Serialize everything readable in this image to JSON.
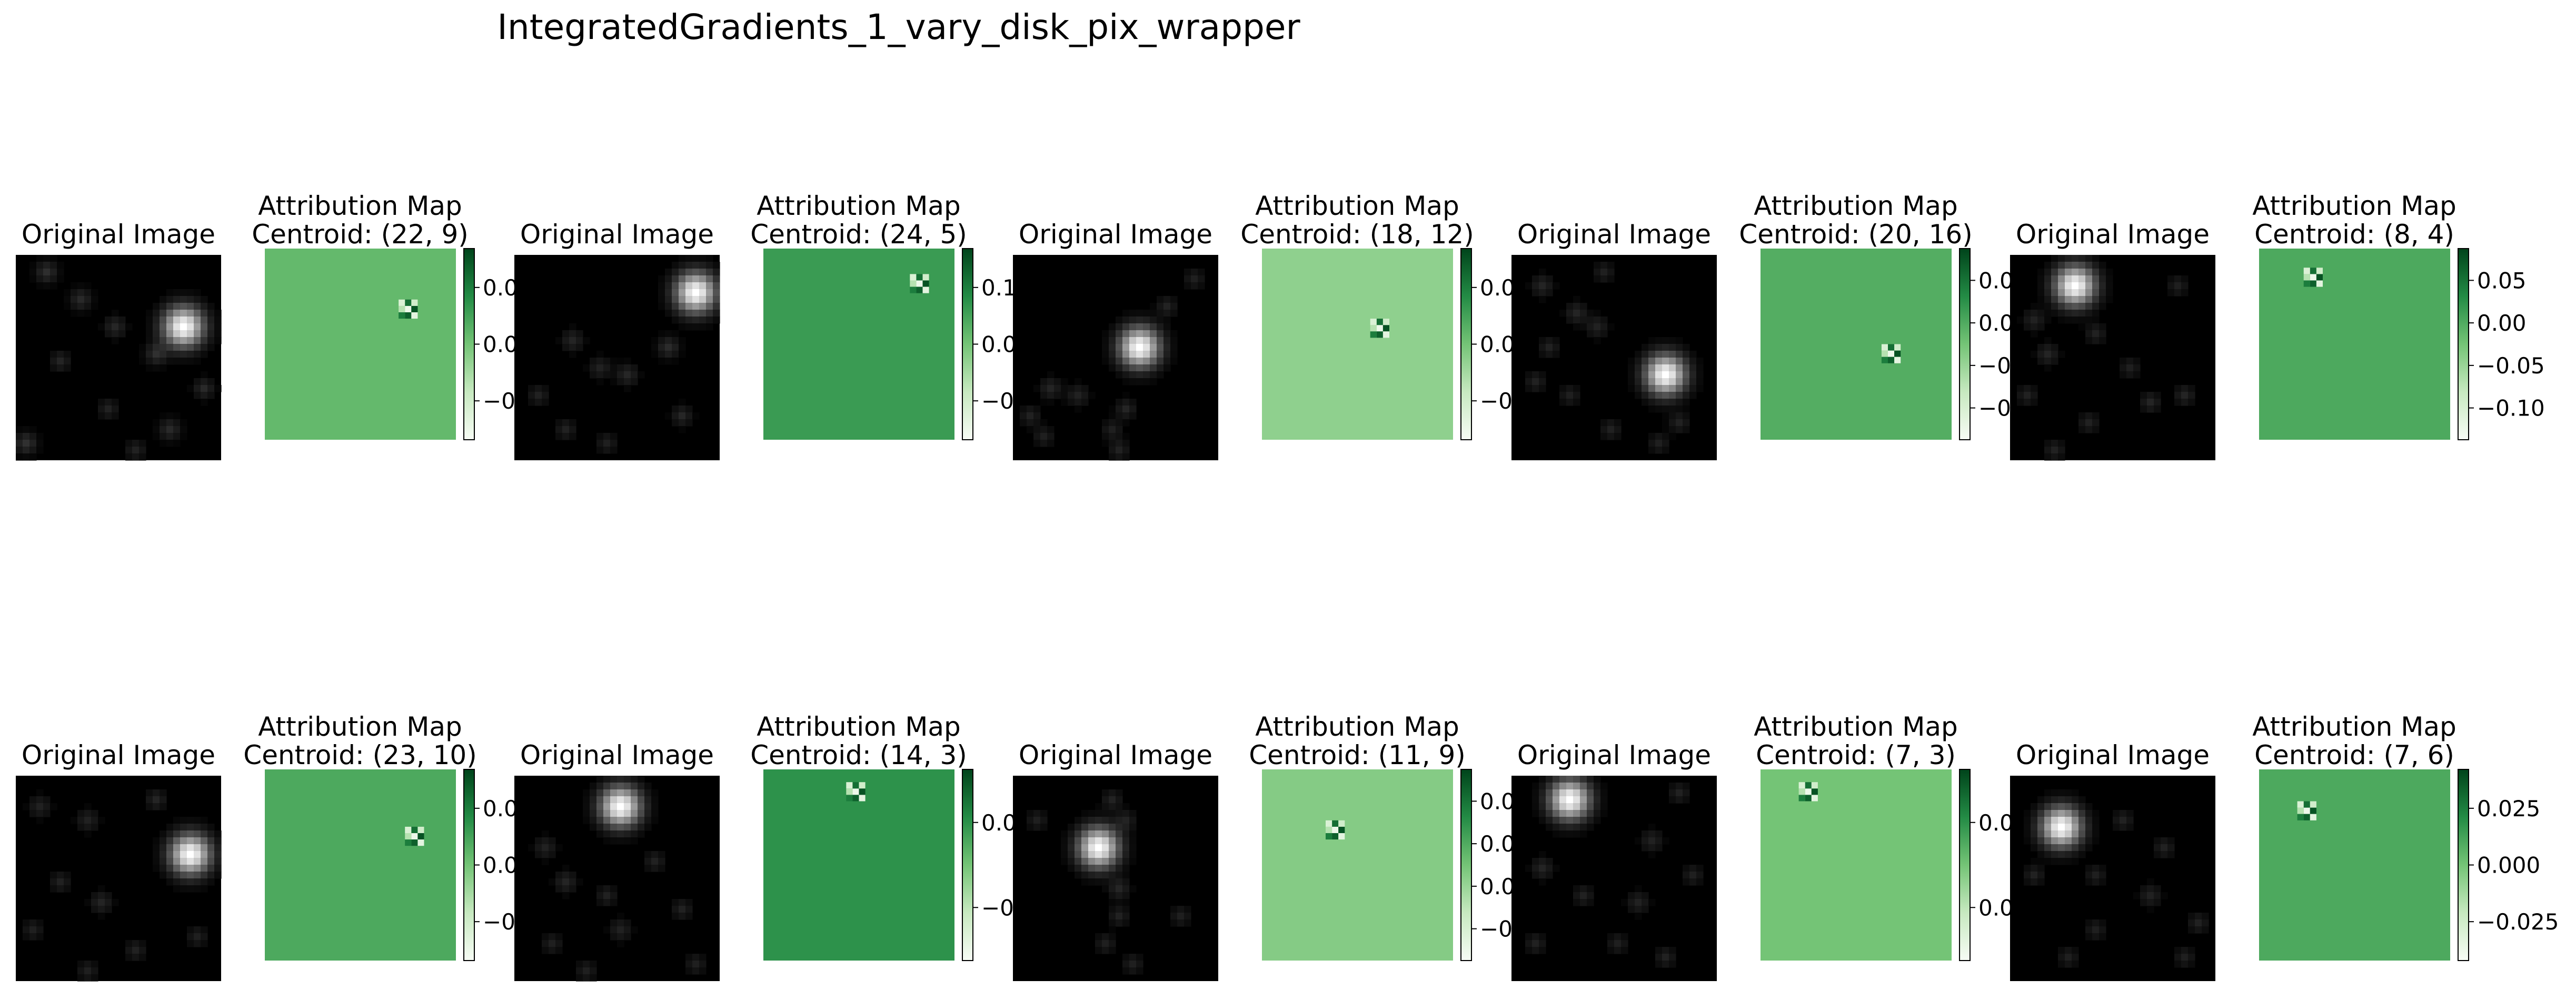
{
  "figure": {
    "title": "IntegratedGradients_1_vary_disk_pix_wrapper"
  },
  "chart_data": {
    "type": "heatmap",
    "title": "IntegratedGradients_1_vary_disk_pix_wrapper",
    "grid": false,
    "colormap_original": "gray",
    "colormap_attribution": "Greens",
    "panels": [
      {
        "original_title": "Original Image",
        "attr_title": "Attribution Map",
        "centroid_text": "Centroid: (22, 9)",
        "centroid": [
          22,
          9
        ],
        "bg_level": 0.55,
        "blobs": [
          [
            24,
            10,
            1.0,
            2.0
          ],
          [
            4,
            2,
            0.18,
            1.1
          ],
          [
            9,
            6,
            0.16,
            1.1
          ],
          [
            14,
            10,
            0.15,
            1.1
          ],
          [
            6,
            15,
            0.14,
            1.0
          ],
          [
            20,
            14,
            0.17,
            1.1
          ],
          [
            27,
            19,
            0.16,
            1.0
          ],
          [
            13,
            22,
            0.13,
            1.0
          ],
          [
            22,
            25,
            0.16,
            1.1
          ],
          [
            1,
            27,
            0.19,
            1.1
          ],
          [
            17,
            28,
            0.13,
            1.0
          ]
        ],
        "colorbar_ticks": [
          "0.0",
          "0.0",
          "−0"
        ]
      },
      {
        "original_title": "Original Image",
        "attr_title": "Attribution Map",
        "centroid_text": "Centroid: (24, 5)",
        "centroid": [
          24,
          5
        ],
        "bg_level": 0.68,
        "blobs": [
          [
            26,
            5,
            1.0,
            2.0
          ],
          [
            8,
            12,
            0.14,
            1.1
          ],
          [
            12,
            16,
            0.13,
            1.1
          ],
          [
            16,
            17,
            0.15,
            1.1
          ],
          [
            3,
            20,
            0.13,
            1.0
          ],
          [
            22,
            13,
            0.17,
            1.1
          ],
          [
            24,
            23,
            0.15,
            1.0
          ],
          [
            13,
            27,
            0.12,
            1.0
          ],
          [
            7,
            25,
            0.13,
            1.0
          ]
        ],
        "colorbar_ticks": [
          "0.1",
          "0.0",
          "−0"
        ]
      },
      {
        "original_title": "Original Image",
        "attr_title": "Attribution Map",
        "centroid_text": "Centroid: (18, 12)",
        "centroid": [
          18,
          12
        ],
        "bg_level": 0.42,
        "blobs": [
          [
            18,
            13,
            1.0,
            2.0
          ],
          [
            5,
            19,
            0.14,
            1.1
          ],
          [
            9,
            20,
            0.13,
            1.1
          ],
          [
            2,
            23,
            0.13,
            1.0
          ],
          [
            4,
            26,
            0.12,
            1.0
          ],
          [
            16,
            22,
            0.14,
            1.0
          ],
          [
            14,
            25,
            0.12,
            1.0
          ],
          [
            22,
            7,
            0.13,
            1.0
          ],
          [
            26,
            3,
            0.12,
            1.0
          ],
          [
            15,
            28,
            0.13,
            1.0
          ]
        ],
        "colorbar_ticks": [
          "0.0",
          "0.0",
          "−0"
        ]
      },
      {
        "original_title": "Original Image",
        "attr_title": "Attribution Map",
        "centroid_text": "Centroid: (20, 16)",
        "centroid": [
          20,
          16
        ],
        "bg_level": 0.6,
        "blobs": [
          [
            22,
            17,
            1.0,
            2.0
          ],
          [
            4,
            4,
            0.14,
            1.1
          ],
          [
            9,
            8,
            0.14,
            1.1
          ],
          [
            12,
            10,
            0.13,
            1.1
          ],
          [
            5,
            13,
            0.13,
            1.0
          ],
          [
            3,
            18,
            0.13,
            1.0
          ],
          [
            8,
            20,
            0.12,
            1.0
          ],
          [
            14,
            25,
            0.13,
            1.0
          ],
          [
            24,
            24,
            0.13,
            1.0
          ],
          [
            13,
            2,
            0.12,
            1.0
          ],
          [
            21,
            27,
            0.12,
            1.0
          ]
        ],
        "colorbar_ticks": [
          "0.0",
          "0.0",
          "−0",
          "−0"
        ]
      },
      {
        "original_title": "Original Image",
        "attr_title": "Attribution Map",
        "centroid_text": "Centroid: (8, 4)",
        "centroid": [
          8,
          4
        ],
        "bg_level": 0.62,
        "blobs": [
          [
            9,
            4,
            1.0,
            2.0
          ],
          [
            3,
            9,
            0.13,
            1.1
          ],
          [
            5,
            14,
            0.14,
            1.1
          ],
          [
            2,
            20,
            0.13,
            1.0
          ],
          [
            12,
            11,
            0.13,
            1.0
          ],
          [
            17,
            16,
            0.12,
            1.0
          ],
          [
            20,
            21,
            0.14,
            1.0
          ],
          [
            11,
            24,
            0.13,
            1.0
          ],
          [
            25,
            20,
            0.14,
            1.0
          ],
          [
            6,
            28,
            0.13,
            1.0
          ],
          [
            24,
            4,
            0.12,
            1.0
          ]
        ],
        "colorbar_ticks": [
          "0.05",
          "0.00",
          "−0.05",
          "−0.10"
        ]
      },
      {
        "original_title": "Original Image",
        "attr_title": "Attribution Map",
        "centroid_text": "Centroid: (23, 10)",
        "centroid": [
          23,
          10
        ],
        "bg_level": 0.62,
        "blobs": [
          [
            25,
            11,
            1.0,
            2.0
          ],
          [
            3,
            4,
            0.13,
            1.1
          ],
          [
            10,
            6,
            0.13,
            1.1
          ],
          [
            20,
            3,
            0.14,
            1.0
          ],
          [
            6,
            15,
            0.13,
            1.0
          ],
          [
            12,
            18,
            0.14,
            1.1
          ],
          [
            2,
            22,
            0.12,
            1.0
          ],
          [
            17,
            25,
            0.13,
            1.0
          ],
          [
            26,
            23,
            0.12,
            1.0
          ],
          [
            10,
            28,
            0.12,
            1.0
          ]
        ],
        "colorbar_ticks": [
          "0.0",
          "0.0",
          "−0"
        ]
      },
      {
        "original_title": "Original Image",
        "attr_title": "Attribution Map",
        "centroid_text": "Centroid: (14, 3)",
        "centroid": [
          14,
          3
        ],
        "bg_level": 0.72,
        "blobs": [
          [
            15,
            4,
            1.0,
            2.0
          ],
          [
            4,
            10,
            0.13,
            1.1
          ],
          [
            7,
            15,
            0.14,
            1.1
          ],
          [
            13,
            17,
            0.13,
            1.0
          ],
          [
            20,
            12,
            0.13,
            1.0
          ],
          [
            24,
            19,
            0.13,
            1.0
          ],
          [
            15,
            22,
            0.13,
            1.1
          ],
          [
            5,
            24,
            0.12,
            1.0
          ],
          [
            26,
            27,
            0.12,
            1.0
          ],
          [
            10,
            28,
            0.12,
            1.0
          ]
        ],
        "colorbar_ticks": [
          "0.0",
          "−0"
        ]
      },
      {
        "original_title": "Original Image",
        "attr_title": "Attribution Map",
        "centroid_text": "Centroid: (11, 9)",
        "centroid": [
          11,
          9
        ],
        "bg_level": 0.45,
        "blobs": [
          [
            12,
            10,
            1.0,
            2.0
          ],
          [
            14,
            3,
            0.13,
            1.0
          ],
          [
            16,
            6,
            0.12,
            1.0
          ],
          [
            15,
            16,
            0.14,
            1.1
          ],
          [
            15,
            20,
            0.13,
            1.0
          ],
          [
            13,
            24,
            0.12,
            1.0
          ],
          [
            17,
            27,
            0.12,
            1.0
          ],
          [
            3,
            6,
            0.12,
            1.0
          ],
          [
            24,
            20,
            0.12,
            1.0
          ]
        ],
        "colorbar_ticks": [
          "0.0",
          "0.0",
          "0.0",
          "−0"
        ]
      },
      {
        "original_title": "Original Image",
        "attr_title": "Attribution Map",
        "centroid_text": "Centroid: (7, 3)",
        "centroid": [
          7,
          3
        ],
        "bg_level": 0.5,
        "blobs": [
          [
            8,
            3,
            1.0,
            2.0
          ],
          [
            24,
            2,
            0.13,
            1.0
          ],
          [
            20,
            9,
            0.13,
            1.1
          ],
          [
            4,
            13,
            0.14,
            1.1
          ],
          [
            10,
            17,
            0.13,
            1.0
          ],
          [
            18,
            18,
            0.13,
            1.1
          ],
          [
            26,
            14,
            0.12,
            1.0
          ],
          [
            3,
            24,
            0.13,
            1.0
          ],
          [
            15,
            24,
            0.12,
            1.0
          ],
          [
            22,
            26,
            0.13,
            1.0
          ]
        ],
        "colorbar_ticks": [
          "0.0",
          "0.0"
        ]
      },
      {
        "original_title": "Original Image",
        "attr_title": "Attribution Map",
        "centroid_text": "Centroid: (7, 6)",
        "centroid": [
          7,
          6
        ],
        "bg_level": 0.62,
        "blobs": [
          [
            7,
            7,
            1.0,
            2.0
          ],
          [
            3,
            14,
            0.13,
            1.0
          ],
          [
            12,
            14,
            0.12,
            1.0
          ],
          [
            16,
            6,
            0.13,
            1.0
          ],
          [
            22,
            10,
            0.13,
            1.0
          ],
          [
            20,
            17,
            0.13,
            1.1
          ],
          [
            27,
            21,
            0.13,
            1.0
          ],
          [
            12,
            22,
            0.12,
            1.0
          ],
          [
            8,
            26,
            0.12,
            1.0
          ],
          [
            25,
            26,
            0.12,
            1.0
          ]
        ],
        "colorbar_ticks": [
          "0.025",
          "0.000",
          "−0.025"
        ]
      }
    ]
  }
}
